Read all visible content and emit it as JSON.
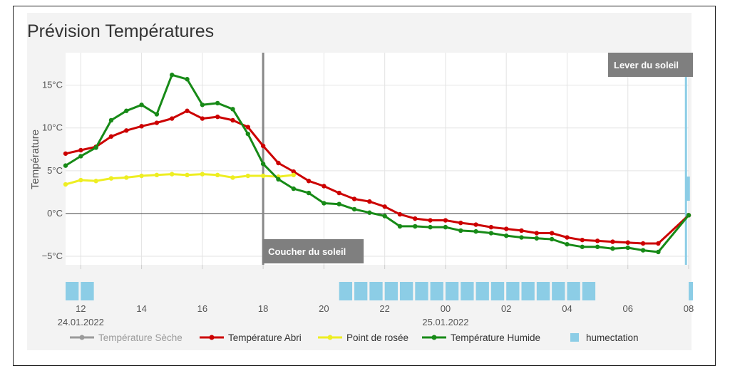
{
  "chart_data": {
    "type": "line",
    "title": "Prévision Températures",
    "ylabel": "Température",
    "y_ticks": [
      "15°C",
      "10°C",
      "5°C",
      "0°C",
      "−5°C"
    ],
    "x_ticks": [
      "12",
      "14",
      "16",
      "18",
      "20",
      "22",
      "00",
      "02",
      "04",
      "06",
      "08"
    ],
    "date_labels": [
      {
        "text": "24.01.2022",
        "at_hour": 12
      },
      {
        "text": "25.01.2022",
        "at_hour": 24
      }
    ],
    "ylim": [
      -6.0,
      18.8
    ],
    "xlim_hours": [
      11.5,
      32.0
    ],
    "grid": true,
    "legend_position": "bottom",
    "annotations": [
      {
        "label": "Coucher du soleil",
        "hour": 18.0
      },
      {
        "label": "Lever du soleil",
        "hour": 31.9
      }
    ],
    "series": [
      {
        "name": "Température Sèche",
        "color": "#888888",
        "visible": false,
        "x": [],
        "values": []
      },
      {
        "name": "Température Abri",
        "color": "#cc0000",
        "visible": true,
        "x": [
          11.5,
          12,
          12.5,
          13,
          13.5,
          14,
          14.5,
          15,
          15.5,
          16,
          16.5,
          17,
          17.5,
          18,
          18.5,
          19,
          19.5,
          20,
          20.5,
          21,
          21.5,
          22,
          22.5,
          23,
          23.5,
          24,
          24.5,
          25,
          25.5,
          26,
          26.5,
          27,
          27.5,
          28,
          28.5,
          29,
          29.5,
          30,
          30.5,
          31,
          32
        ],
        "values": [
          7.0,
          7.4,
          7.8,
          9.0,
          9.7,
          10.2,
          10.6,
          11.1,
          12.0,
          11.1,
          11.3,
          10.9,
          10.1,
          7.9,
          5.9,
          4.9,
          3.8,
          3.2,
          2.4,
          1.7,
          1.4,
          0.8,
          -0.1,
          -0.6,
          -0.8,
          -0.8,
          -1.1,
          -1.3,
          -1.6,
          -1.8,
          -2.0,
          -2.3,
          -2.3,
          -2.8,
          -3.1,
          -3.2,
          -3.3,
          -3.4,
          -3.5,
          -3.5,
          -0.2
        ]
      },
      {
        "name": "Point de rosée",
        "color": "#eeee22",
        "visible": true,
        "x": [
          11.5,
          12,
          12.5,
          13,
          13.5,
          14,
          14.5,
          15,
          15.5,
          16,
          16.5,
          17,
          17.5,
          18,
          18.5,
          19
        ],
        "values": [
          3.4,
          3.9,
          3.8,
          4.1,
          4.2,
          4.4,
          4.5,
          4.6,
          4.5,
          4.6,
          4.5,
          4.2,
          4.4,
          4.4,
          4.3,
          4.5
        ]
      },
      {
        "name": "Température Humide",
        "color": "#178a17",
        "visible": true,
        "x": [
          11.5,
          12,
          12.5,
          13,
          13.5,
          14,
          14.5,
          15,
          15.5,
          16,
          16.5,
          17,
          17.5,
          18,
          18.5,
          19,
          19.5,
          20,
          20.5,
          21,
          21.5,
          22,
          22.5,
          23,
          23.5,
          24,
          24.5,
          25,
          25.5,
          26,
          26.5,
          27,
          27.5,
          28,
          28.5,
          29,
          29.5,
          30,
          30.5,
          31,
          32
        ],
        "values": [
          5.6,
          6.7,
          7.7,
          10.9,
          12.0,
          12.7,
          11.6,
          16.2,
          15.7,
          12.7,
          12.9,
          12.2,
          9.3,
          5.8,
          4.0,
          2.9,
          2.4,
          1.2,
          1.1,
          0.5,
          0.1,
          -0.3,
          -1.5,
          -1.5,
          -1.6,
          -1.6,
          -2.0,
          -2.1,
          -2.3,
          -2.6,
          -2.8,
          -2.9,
          -3.0,
          -3.6,
          -3.9,
          -3.9,
          -4.1,
          -4.0,
          -4.3,
          -4.5,
          -0.2
        ]
      },
      {
        "name": "humectation",
        "color": "#8ccde6",
        "type": "column",
        "visible": true,
        "x": [
          11.5,
          12,
          20.5,
          21,
          21.5,
          22,
          22.5,
          23,
          23.5,
          24,
          24.5,
          25,
          25.5,
          26,
          26.5,
          27,
          27.5,
          28,
          28.5,
          32
        ],
        "values": [
          1,
          1,
          1,
          1,
          1,
          1,
          1,
          1,
          1,
          1,
          1,
          1,
          1,
          1,
          1,
          1,
          1,
          1,
          1,
          1
        ]
      }
    ]
  }
}
